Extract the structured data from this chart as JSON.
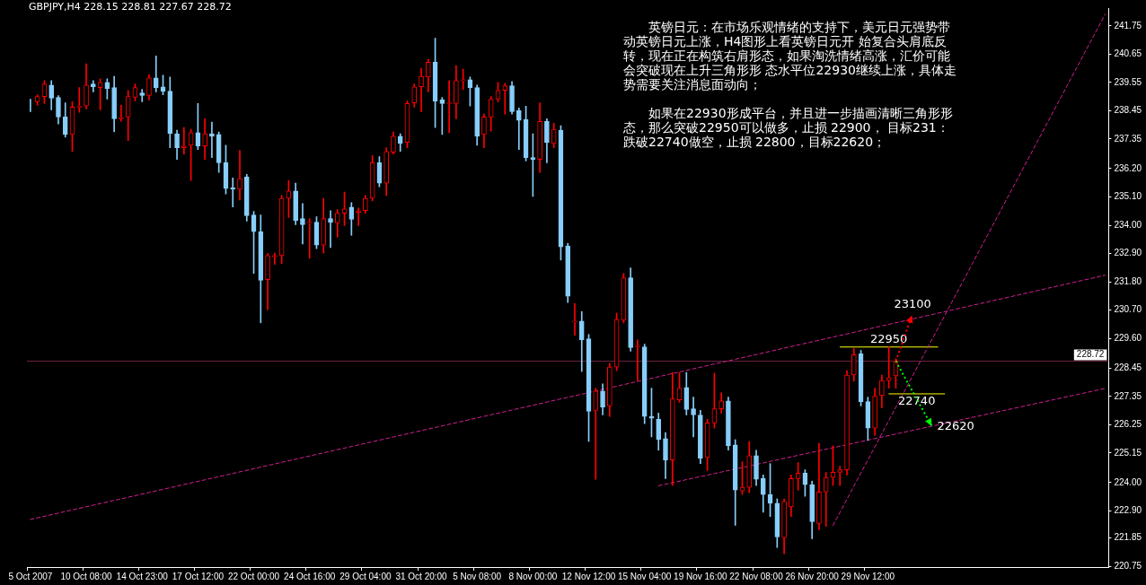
{
  "chart_data": {
    "type": "candlestick",
    "title": "GBPJPY,H4 228.15 228.81 227.67 228.72",
    "categories": [
      "5 Oct 2007",
      null,
      null,
      null,
      null,
      null,
      null,
      null,
      "10 Oct 08:00",
      null,
      null,
      null,
      null,
      null,
      null,
      null,
      "14 Oct 23:00",
      null,
      null,
      null,
      null,
      null,
      null,
      null,
      "17 Oct 12:00",
      null,
      null,
      null,
      null,
      null,
      null,
      null,
      "22 Oct 00:00",
      null,
      null,
      null,
      null,
      null,
      null,
      null,
      "24 Oct 16:00",
      null,
      null,
      null,
      null,
      null,
      null,
      null,
      "29 Oct 04:00",
      null,
      null,
      null,
      null,
      null,
      null,
      null,
      "31 Oct 20:00",
      null,
      null,
      null,
      null,
      null,
      null,
      null,
      "5 Nov 08:00",
      null,
      null,
      null,
      null,
      null,
      null,
      null,
      "8 Nov 00:00",
      null,
      null,
      null,
      null,
      null,
      null,
      null,
      "12 Nov 12:00",
      null,
      null,
      null,
      null,
      null,
      null,
      null,
      "15 Nov 04:00",
      null,
      null,
      null,
      null,
      null,
      null,
      null,
      "19 Nov 16:00",
      null,
      null,
      null,
      null,
      null,
      null,
      null,
      "22 Nov 08:00",
      null,
      null,
      null,
      null,
      null,
      null,
      null,
      "26 Nov 20:00",
      null,
      null,
      null,
      null,
      null,
      null,
      null,
      "29 Nov 12:00",
      null,
      null,
      null,
      null,
      null,
      null,
      null,
      null,
      null,
      null,
      null,
      null,
      null,
      null,
      null,
      null,
      null,
      null,
      null,
      null,
      null,
      null,
      null,
      null,
      null,
      null,
      null,
      null,
      null,
      null,
      null,
      null,
      null,
      null
    ],
    "ohlc": [
      [
        238.76,
        238.9,
        238.42,
        238.76
      ],
      [
        238.8,
        239.07,
        238.66,
        239.0
      ],
      [
        239.0,
        239.62,
        238.73,
        239.49
      ],
      [
        239.45,
        239.62,
        238.49,
        238.94
      ],
      [
        238.97,
        239.04,
        237.94,
        238.21
      ],
      [
        238.21,
        238.76,
        237.42,
        237.53
      ],
      [
        237.53,
        238.8,
        236.87,
        238.59
      ],
      [
        238.59,
        239.35,
        238.39,
        238.63
      ],
      [
        238.63,
        240.28,
        238.52,
        239.45
      ],
      [
        239.49,
        239.62,
        239.18,
        239.38
      ],
      [
        239.35,
        239.69,
        238.49,
        239.55
      ],
      [
        239.55,
        239.69,
        238.9,
        239.31
      ],
      [
        239.35,
        239.79,
        237.63,
        238.14
      ],
      [
        238.14,
        238.66,
        238.04,
        238.18
      ],
      [
        238.21,
        239.24,
        237.29,
        239.0
      ],
      [
        238.97,
        239.49,
        238.83,
        239.35
      ],
      [
        239.14,
        239.28,
        238.8,
        239.04
      ],
      [
        239.04,
        239.86,
        238.87,
        239.73
      ],
      [
        239.73,
        240.58,
        239.18,
        239.35
      ],
      [
        239.38,
        239.83,
        239.07,
        239.21
      ],
      [
        239.21,
        239.76,
        237.01,
        237.56
      ],
      [
        237.56,
        237.7,
        236.56,
        237.01
      ],
      [
        237.01,
        237.8,
        236.77,
        237.08
      ],
      [
        237.11,
        237.73,
        235.74,
        237.6
      ],
      [
        237.6,
        238.73,
        236.94,
        237.08
      ],
      [
        237.08,
        238.14,
        236.56,
        237.56
      ],
      [
        237.56,
        238.01,
        236.63,
        237.46
      ],
      [
        237.53,
        237.63,
        236.05,
        236.43
      ],
      [
        236.43,
        237.11,
        235.22,
        235.43
      ],
      [
        235.46,
        235.84,
        234.71,
        235.4
      ],
      [
        235.4,
        236.91,
        234.98,
        235.81
      ],
      [
        235.88,
        235.98,
        234.16,
        234.37
      ],
      [
        234.4,
        234.54,
        232.13,
        233.75
      ],
      [
        233.75,
        234.4,
        230.21,
        231.86
      ],
      [
        231.89,
        232.9,
        230.72,
        232.82
      ],
      [
        232.78,
        232.92,
        232.48,
        232.82
      ],
      [
        232.82,
        235.16,
        232.51,
        235.05
      ],
      [
        235.05,
        235.74,
        234.3,
        235.33
      ],
      [
        235.33,
        235.64,
        234.02,
        234.19
      ],
      [
        234.26,
        234.85,
        233.27,
        234.02
      ],
      [
        234.09,
        234.26,
        232.72,
        234.12
      ],
      [
        234.12,
        234.33,
        233.09,
        233.23
      ],
      [
        233.23,
        235.05,
        232.92,
        234.26
      ],
      [
        234.26,
        234.57,
        233.13,
        234.12
      ],
      [
        234.09,
        234.61,
        233.54,
        234.47
      ],
      [
        234.47,
        235.29,
        233.99,
        234.64
      ],
      [
        234.71,
        234.88,
        233.61,
        234.23
      ],
      [
        234.5,
        234.67,
        233.99,
        234.57
      ],
      [
        234.57,
        235.16,
        234.47,
        235.05
      ],
      [
        235.05,
        236.7,
        234.95,
        236.43
      ],
      [
        236.43,
        236.67,
        235.5,
        235.64
      ],
      [
        235.64,
        237.01,
        235.16,
        236.87
      ],
      [
        236.84,
        237.63,
        236.77,
        237.46
      ],
      [
        237.46,
        237.56,
        236.87,
        237.18
      ],
      [
        237.22,
        238.83,
        237.01,
        238.73
      ],
      [
        238.76,
        239.49,
        238.59,
        239.38
      ],
      [
        239.38,
        240.1,
        238.42,
        239.79
      ],
      [
        239.76,
        240.45,
        239.18,
        240.34
      ],
      [
        240.34,
        241.27,
        237.8,
        238.83
      ],
      [
        238.87,
        238.97,
        237.53,
        238.73
      ],
      [
        238.73,
        239.62,
        237.6,
        238.76
      ],
      [
        238.73,
        240.21,
        238.14,
        239.62
      ],
      [
        239.62,
        240.07,
        239.28,
        239.66
      ],
      [
        239.66,
        239.76,
        238.63,
        239.35
      ],
      [
        239.35,
        239.45,
        237.11,
        237.46
      ],
      [
        237.53,
        238.32,
        237.01,
        238.21
      ],
      [
        238.21,
        239.0,
        237.66,
        238.9
      ],
      [
        238.9,
        239.55,
        238.8,
        239.24
      ],
      [
        239.24,
        239.52,
        238.32,
        239.42
      ],
      [
        239.42,
        239.59,
        238.32,
        238.42
      ],
      [
        238.45,
        238.56,
        236.94,
        238.08
      ],
      [
        238.11,
        238.63,
        236.5,
        236.63
      ],
      [
        236.63,
        237.56,
        235.12,
        236.56
      ],
      [
        236.56,
        238.76,
        236.05,
        238.04
      ],
      [
        238.04,
        238.14,
        236.43,
        237.22
      ],
      [
        237.18,
        237.97,
        237.01,
        237.73
      ],
      [
        237.7,
        237.87,
        232.65,
        233.16
      ],
      [
        233.2,
        233.3,
        231.0,
        231.24
      ],
      [
        230.24,
        230.96,
        229.73,
        230.28
      ],
      [
        230.28,
        230.65,
        228.32,
        229.55
      ],
      [
        229.59,
        229.76,
        225.6,
        226.77
      ],
      [
        226.81,
        227.67,
        224.13,
        227.56
      ],
      [
        227.56,
        227.84,
        226.63,
        226.94
      ],
      [
        226.98,
        228.63,
        226.57,
        228.49
      ],
      [
        228.49,
        230.59,
        228.35,
        230.34
      ],
      [
        230.31,
        232.13,
        230.21,
        231.96
      ],
      [
        231.96,
        232.34,
        229.11,
        229.25
      ],
      [
        229.28,
        229.55,
        227.97,
        229.31
      ],
      [
        229.28,
        229.38,
        226.29,
        226.57
      ],
      [
        226.57,
        227.67,
        225.78,
        226.5
      ],
      [
        226.46,
        226.7,
        225.26,
        225.67
      ],
      [
        225.71,
        225.95,
        224.16,
        224.88
      ],
      [
        224.88,
        228.28,
        223.89,
        227.25
      ],
      [
        227.22,
        228.28,
        227.12,
        227.67
      ],
      [
        227.7,
        228.28,
        226.63,
        226.84
      ],
      [
        226.87,
        227.32,
        225.78,
        226.63
      ],
      [
        226.63,
        226.81,
        224.74,
        224.95
      ],
      [
        224.98,
        226.46,
        224.47,
        226.32
      ],
      [
        226.32,
        228.25,
        226.12,
        226.87
      ],
      [
        226.87,
        227.49,
        226.7,
        227.18
      ],
      [
        227.18,
        227.32,
        225.26,
        225.43
      ],
      [
        225.47,
        225.67,
        222.34,
        223.71
      ],
      [
        223.68,
        224.81,
        223.54,
        223.82
      ],
      [
        223.82,
        225.6,
        223.61,
        225.05
      ],
      [
        225.05,
        225.26,
        223.89,
        224.13
      ],
      [
        224.16,
        224.3,
        222.85,
        223.54
      ],
      [
        223.54,
        224.74,
        222.68,
        223.2
      ],
      [
        223.2,
        223.37,
        221.48,
        221.89
      ],
      [
        221.86,
        223.37,
        221.24,
        223.27
      ],
      [
        223.06,
        224.3,
        222.68,
        224.16
      ],
      [
        224.16,
        224.78,
        223.71,
        224.37
      ],
      [
        224.37,
        224.5,
        223.47,
        223.92
      ],
      [
        223.92,
        224.06,
        221.82,
        222.48
      ],
      [
        222.41,
        225.53,
        222.17,
        223.64
      ],
      [
        223.64,
        224.4,
        222.3,
        224.2
      ],
      [
        224.2,
        225.43,
        223.89,
        224.4
      ],
      [
        224.4,
        224.64,
        223.89,
        224.5
      ],
      [
        224.5,
        228.35,
        224.3,
        228.18
      ],
      [
        228.18,
        229.21,
        227.94,
        228.97
      ],
      [
        229.01,
        229.14,
        226.98,
        227.15
      ],
      [
        227.15,
        227.32,
        225.64,
        226.12
      ],
      [
        226.12,
        227.67,
        225.84,
        227.36
      ],
      [
        227.39,
        228.18,
        226.91,
        227.97
      ],
      [
        227.97,
        229.28,
        227.67,
        228.08
      ],
      [
        228.15,
        228.81,
        227.67,
        228.72
      ],
      null,
      null,
      null,
      null,
      null,
      null,
      null,
      null,
      null,
      null,
      null,
      null,
      null,
      null,
      null,
      null,
      null,
      null,
      null,
      null,
      null,
      null,
      null,
      null,
      null,
      null,
      null,
      null,
      null,
      null
    ],
    "colors": [
      "#87cefa",
      "#ff0000",
      "#ff0000",
      "#87cefa",
      "#87cefa",
      "#87cefa",
      "#ff0000",
      "#ff0000",
      "#ff0000",
      "#87cefa",
      "#ff0000",
      "#87cefa",
      "#87cefa",
      "#ff0000",
      "#ff0000",
      "#ff0000",
      "#87cefa",
      "#ff0000",
      "#87cefa",
      "#87cefa",
      "#87cefa",
      "#87cefa",
      "#ff0000",
      "#ff0000",
      "#87cefa",
      "#ff0000",
      "#87cefa",
      "#87cefa",
      "#87cefa",
      "#87cefa",
      "#ff0000",
      "#87cefa",
      "#87cefa",
      "#87cefa",
      "#ff0000",
      "#ff0000",
      "#ff0000",
      "#ff0000",
      "#87cefa",
      "#87cefa",
      "#ff0000",
      "#87cefa",
      "#ff0000",
      "#87cefa",
      "#ff0000",
      "#ff0000",
      "#87cefa",
      "#ff0000",
      "#ff0000",
      "#ff0000",
      "#87cefa",
      "#ff0000",
      "#ff0000",
      "#87cefa",
      "#ff0000",
      "#ff0000",
      "#ff0000",
      "#ff0000",
      "#87cefa",
      "#87cefa",
      "#ff0000",
      "#ff0000",
      "#ff0000",
      "#87cefa",
      "#87cefa",
      "#ff0000",
      "#ff0000",
      "#ff0000",
      "#ff0000",
      "#87cefa",
      "#87cefa",
      "#87cefa",
      "#87cefa",
      "#ff0000",
      "#87cefa",
      "#ff0000",
      "#87cefa",
      "#87cefa",
      "#ff0000",
      "#87cefa",
      "#87cefa",
      "#ff0000",
      "#87cefa",
      "#ff0000",
      "#ff0000",
      "#ff0000",
      "#87cefa",
      "#ff0000",
      "#87cefa",
      "#87cefa",
      "#87cefa",
      "#87cefa",
      "#ff0000",
      "#ff0000",
      "#87cefa",
      "#87cefa",
      "#87cefa",
      "#ff0000",
      "#ff0000",
      "#ff0000",
      "#87cefa",
      "#87cefa",
      "#ff0000",
      "#ff0000",
      "#87cefa",
      "#87cefa",
      "#87cefa",
      "#87cefa",
      "#ff0000",
      "#ff0000",
      "#ff0000",
      "#87cefa",
      "#87cefa",
      "#ff0000",
      "#ff0000",
      "#ff0000",
      "#ff0000",
      "#ff0000",
      "#ff0000",
      "#87cefa",
      "#87cefa",
      "#ff0000",
      "#ff0000",
      "#ff0000",
      "#ff0000",
      null,
      null,
      null,
      null,
      null,
      null,
      null,
      null,
      null,
      null,
      null,
      null,
      null,
      null,
      null,
      null,
      null,
      null,
      null,
      null,
      null,
      null,
      null,
      null,
      null,
      null,
      null,
      null,
      null,
      null
    ],
    "series": [
      {
        "type": "line",
        "color": "#d02090",
        "line_style": "dashed",
        "values": [
          222.57,
          null,
          null,
          null,
          null,
          null,
          null,
          null,
          null,
          null,
          null,
          null,
          null,
          null,
          null,
          null,
          null,
          null,
          null,
          null,
          null,
          null,
          null,
          null,
          null,
          null,
          null,
          null,
          null,
          null,
          null,
          null,
          null,
          null,
          null,
          null,
          null,
          null,
          null,
          null,
          null,
          null,
          null,
          null,
          null,
          null,
          null,
          null,
          null,
          null,
          null,
          null,
          null,
          null,
          null,
          null,
          null,
          null,
          null,
          null,
          null,
          null,
          null,
          null,
          null,
          null,
          null,
          null,
          null,
          null,
          null,
          null,
          null,
          null,
          null,
          null,
          null,
          null,
          null,
          null,
          null,
          null,
          null,
          null,
          null,
          null,
          null,
          null,
          null,
          null,
          null,
          null,
          null,
          null,
          null,
          null,
          null,
          null,
          null,
          null,
          null,
          null,
          null,
          null,
          null,
          null,
          null,
          null,
          null,
          null,
          null,
          null,
          null,
          null,
          null,
          null,
          null,
          null,
          null,
          null,
          null,
          null,
          null,
          null,
          null,
          null,
          null,
          null,
          null,
          null,
          null,
          null,
          null,
          null,
          null,
          null,
          null,
          null,
          null,
          null,
          null,
          null,
          null,
          null,
          null,
          null,
          null,
          null,
          null,
          null,
          null,
          null,
          null,
          null,
          232.06
        ]
      },
      {
        "type": "line",
        "color": "#d02090",
        "line_style": "dashed",
        "values": [
          null,
          null,
          null,
          null,
          null,
          null,
          null,
          null,
          null,
          null,
          null,
          null,
          null,
          null,
          null,
          null,
          null,
          null,
          null,
          null,
          null,
          null,
          null,
          null,
          null,
          null,
          null,
          null,
          null,
          null,
          null,
          null,
          null,
          null,
          null,
          null,
          null,
          null,
          null,
          null,
          null,
          null,
          null,
          null,
          null,
          null,
          null,
          null,
          null,
          null,
          null,
          null,
          null,
          null,
          null,
          null,
          null,
          null,
          null,
          null,
          null,
          null,
          null,
          null,
          null,
          null,
          null,
          null,
          null,
          null,
          null,
          null,
          null,
          null,
          null,
          null,
          null,
          null,
          null,
          null,
          null,
          null,
          null,
          null,
          null,
          null,
          null,
          null,
          null,
          null,
          223.88,
          null,
          null,
          null,
          null,
          null,
          null,
          null,
          null,
          null,
          null,
          null,
          null,
          null,
          null,
          null,
          null,
          null,
          null,
          null,
          null,
          null,
          null,
          null,
          null,
          null,
          null,
          null,
          null,
          null,
          null,
          null,
          null,
          null,
          null,
          null,
          null,
          null,
          null,
          null,
          null,
          null,
          null,
          null,
          null,
          null,
          null,
          null,
          null,
          null,
          null,
          null,
          null,
          null,
          null,
          null,
          null,
          null,
          null,
          null,
          null,
          null,
          null,
          null,
          227.66
        ]
      },
      {
        "type": "line",
        "color": "#d02090",
        "line_style": "dashed",
        "values": [
          null,
          null,
          null,
          null,
          null,
          null,
          null,
          null,
          null,
          null,
          null,
          null,
          null,
          null,
          null,
          null,
          null,
          null,
          null,
          null,
          null,
          null,
          null,
          null,
          null,
          null,
          null,
          null,
          null,
          null,
          null,
          null,
          null,
          null,
          null,
          null,
          null,
          null,
          null,
          null,
          null,
          null,
          null,
          null,
          null,
          null,
          null,
          null,
          null,
          null,
          null,
          null,
          null,
          null,
          null,
          null,
          null,
          null,
          null,
          null,
          null,
          null,
          null,
          null,
          null,
          null,
          null,
          null,
          null,
          null,
          null,
          null,
          null,
          null,
          null,
          null,
          null,
          null,
          null,
          null,
          null,
          null,
          null,
          null,
          null,
          null,
          null,
          null,
          null,
          null,
          null,
          null,
          null,
          null,
          null,
          null,
          null,
          null,
          null,
          null,
          null,
          null,
          null,
          null,
          null,
          null,
          null,
          null,
          null,
          null,
          null,
          null,
          null,
          null,
          null,
          222.34,
          null,
          null,
          null,
          null,
          null,
          null,
          null,
          null,
          null,
          null,
          null,
          null,
          null,
          null,
          null,
          null,
          null,
          null,
          null,
          null,
          null,
          null,
          null,
          null,
          null,
          null,
          null,
          null,
          null,
          null,
          null,
          null,
          null,
          null,
          null,
          null,
          null,
          null,
          242.2
        ]
      },
      {
        "type": "line",
        "name": "22950",
        "color": "#ffff00",
        "line_style": "solid",
        "values": [
          null,
          null,
          null,
          null,
          null,
          null,
          null,
          null,
          null,
          null,
          null,
          null,
          null,
          null,
          null,
          null,
          null,
          null,
          null,
          null,
          null,
          null,
          null,
          null,
          null,
          null,
          null,
          null,
          null,
          null,
          null,
          null,
          null,
          null,
          null,
          null,
          null,
          null,
          null,
          null,
          null,
          null,
          null,
          null,
          null,
          null,
          null,
          null,
          null,
          null,
          null,
          null,
          null,
          null,
          null,
          null,
          null,
          null,
          null,
          null,
          null,
          null,
          null,
          null,
          null,
          null,
          null,
          null,
          null,
          null,
          null,
          null,
          null,
          null,
          null,
          null,
          null,
          null,
          null,
          null,
          null,
          null,
          null,
          null,
          null,
          null,
          null,
          null,
          null,
          null,
          null,
          null,
          null,
          null,
          null,
          null,
          null,
          null,
          null,
          null,
          null,
          null,
          null,
          null,
          null,
          null,
          null,
          null,
          null,
          null,
          null,
          null,
          null,
          null,
          null,
          null,
          229.27,
          null,
          null,
          null,
          null,
          null,
          null,
          null,
          null,
          null,
          null,
          null,
          null,
          null,
          229.27,
          null,
          null,
          null,
          null,
          null,
          null,
          null,
          null,
          null,
          null,
          null,
          null,
          null,
          null,
          null,
          null,
          null,
          null,
          null,
          null,
          null,
          null,
          null,
          null
        ]
      },
      {
        "type": "line",
        "name": "22740",
        "color": "#ffff00",
        "line_style": "solid",
        "values": [
          null,
          null,
          null,
          null,
          null,
          null,
          null,
          null,
          null,
          null,
          null,
          null,
          null,
          null,
          null,
          null,
          null,
          null,
          null,
          null,
          null,
          null,
          null,
          null,
          null,
          null,
          null,
          null,
          null,
          null,
          null,
          null,
          null,
          null,
          null,
          null,
          null,
          null,
          null,
          null,
          null,
          null,
          null,
          null,
          null,
          null,
          null,
          null,
          null,
          null,
          null,
          null,
          null,
          null,
          null,
          null,
          null,
          null,
          null,
          null,
          null,
          null,
          null,
          null,
          null,
          null,
          null,
          null,
          null,
          null,
          null,
          null,
          null,
          null,
          null,
          null,
          null,
          null,
          null,
          null,
          null,
          null,
          null,
          null,
          null,
          null,
          null,
          null,
          null,
          null,
          null,
          null,
          null,
          null,
          null,
          null,
          null,
          null,
          null,
          null,
          null,
          null,
          null,
          null,
          null,
          null,
          null,
          null,
          null,
          null,
          null,
          null,
          null,
          null,
          null,
          null,
          null,
          null,
          null,
          null,
          null,
          null,
          null,
          227.45,
          null,
          null,
          null,
          null,
          null,
          null,
          null,
          227.45,
          null,
          null,
          null,
          null,
          null,
          null,
          null,
          null,
          null,
          null,
          null,
          null,
          null,
          null,
          null,
          null,
          null,
          null,
          null,
          null,
          null,
          null,
          null
        ]
      }
    ],
    "ylim": [
      220.72,
      242.44
    ],
    "yticks": [
      241.75,
      240.65,
      239.55,
      238.45,
      237.35,
      {
        "value": 236.2,
        "label": "236.20"
      },
      {
        "value": 235.1,
        "label": "235.10"
      },
      {
        "value": 234,
        "label": "234.00"
      },
      {
        "value": 232.9,
        "label": "232.90"
      },
      {
        "value": 231.8,
        "label": "231.80"
      },
      {
        "value": 230.7,
        "label": "230.70"
      },
      {
        "value": 229.6,
        "label": "229.60"
      },
      228.45,
      227.35,
      226.25,
      225.15,
      {
        "value": 224,
        "label": "224.00"
      },
      {
        "value": 222.9,
        "label": "222.90"
      },
      221.85,
      220.75
    ],
    "ref_lines": [
      {
        "axis": "y",
        "value": 228.72,
        "label": "228.72",
        "color": "#6e2040"
      }
    ],
    "marker": "none",
    "annotations": [
      "英镑日元：在市场乐观情绪的支持下，美元日元强势带动英镑日元上涨，H4图形上看英镑日元开 始复合头肩底反转，现在正在构筑右肩形态，如果淘洗情绪高涨，汇价可能会突破现在上升三角形形 态水平位22930继续上涨，具体走势需要关注消息面动向；",
      "如果在22930形成平台，并且进一步描画清晰三角形形态，那么突破22950可以做多，止损 22900， 目标231：跌破22740做空，止损 22800，目标22620；",
      {
        "text": "23100",
        "y": 230.5
      },
      {
        "text": "22620",
        "y": 226.2
      }
    ]
  }
}
